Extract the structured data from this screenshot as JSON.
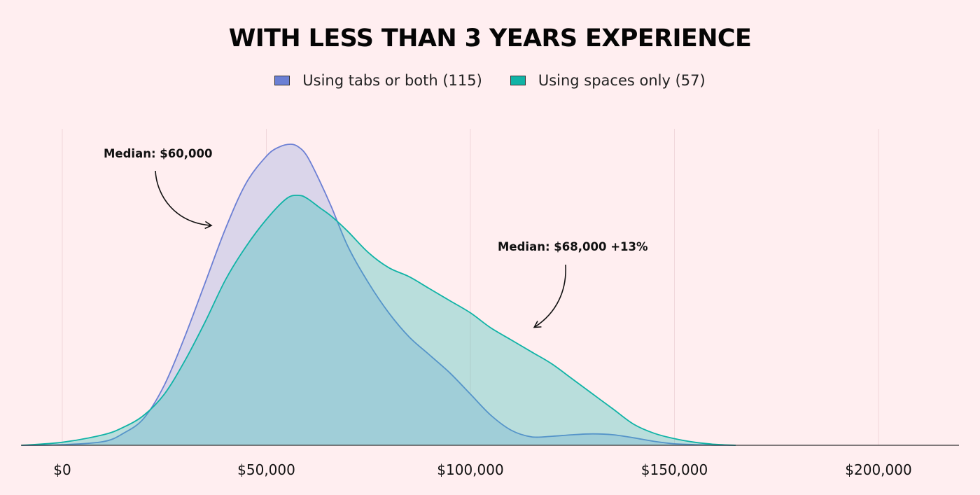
{
  "chart_data": {
    "type": "area",
    "title": "WITH LESS THAN 3 YEARS EXPERIENCE",
    "xlabel": "",
    "ylabel": "",
    "xlim": [
      -10000,
      221000
    ],
    "ylim": [
      0,
      1
    ],
    "x_ticks": [
      0,
      50000,
      100000,
      150000,
      200000
    ],
    "x_tick_labels": [
      "$0",
      "$50,000",
      "$100,000",
      "$150,000",
      "$200,000"
    ],
    "grid": "vertical",
    "legend_position": "top-center",
    "series": [
      {
        "name": "Using tabs or both (115)",
        "color": "#6b7fd4",
        "fill": "#dad5ea",
        "x": [
          -10000,
          0,
          10000,
          15000,
          20000,
          25000,
          30000,
          35000,
          40000,
          45000,
          50000,
          53000,
          56000,
          58000,
          60000,
          63000,
          66000,
          70000,
          75000,
          80000,
          85000,
          90000,
          95000,
          100000,
          105000,
          110000,
          115000,
          120000,
          125000,
          130000,
          135000,
          140000,
          145000,
          150000,
          155000,
          160000,
          165000
        ],
        "values": [
          0,
          0.002,
          0.012,
          0.04,
          0.09,
          0.2,
          0.36,
          0.54,
          0.72,
          0.87,
          0.96,
          0.99,
          1.0,
          0.99,
          0.96,
          0.88,
          0.79,
          0.66,
          0.54,
          0.44,
          0.36,
          0.3,
          0.24,
          0.17,
          0.1,
          0.05,
          0.028,
          0.03,
          0.035,
          0.038,
          0.035,
          0.025,
          0.013,
          0.005,
          0.002,
          0.0005,
          0
        ]
      },
      {
        "name": "Using spaces only (57)",
        "color": "#10b3a6",
        "fill": "rgba(42,190,180,0.33)",
        "x": [
          -10000,
          0,
          10000,
          15000,
          20000,
          25000,
          30000,
          35000,
          40000,
          45000,
          50000,
          55000,
          58000,
          60000,
          63000,
          66000,
          70000,
          75000,
          80000,
          85000,
          90000,
          95000,
          100000,
          105000,
          110000,
          115000,
          120000,
          125000,
          130000,
          135000,
          140000,
          145000,
          150000,
          155000,
          160000,
          165000
        ],
        "values": [
          0,
          0.01,
          0.035,
          0.06,
          0.1,
          0.17,
          0.28,
          0.41,
          0.55,
          0.66,
          0.75,
          0.82,
          0.83,
          0.82,
          0.79,
          0.76,
          0.71,
          0.64,
          0.59,
          0.56,
          0.52,
          0.48,
          0.44,
          0.39,
          0.35,
          0.31,
          0.27,
          0.22,
          0.17,
          0.12,
          0.07,
          0.04,
          0.022,
          0.01,
          0.003,
          0
        ]
      }
    ],
    "annotations": [
      {
        "text": "Median: $60,000"
      },
      {
        "text": "Median: $68,000 +13%"
      }
    ]
  },
  "colors": {
    "background": "#ffeef0",
    "grid": "#f0d6da",
    "baseline": "#333333"
  }
}
